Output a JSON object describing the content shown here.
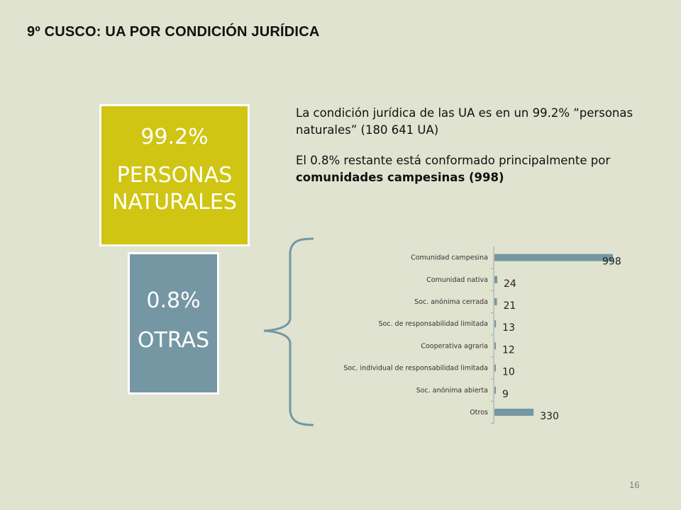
{
  "slide": {
    "title": "9º CUSCO:  UA POR CONDICIÓN JURÍDICA",
    "page_number": "16"
  },
  "boxes": {
    "main": {
      "percent": "99.2%",
      "label": "PERSONAS NATURALES",
      "color": "#cfc512"
    },
    "other": {
      "percent": "0.8%",
      "label": "OTRAS",
      "color": "#7497a3"
    }
  },
  "description": {
    "para1": "La condición jurídica de las UA es en un 99.2% “personas naturales” (180 641 UA)",
    "para2_prefix": "El 0.8% restante está conformado principalmente por ",
    "para2_bold": "comunidades campesinas (998)"
  },
  "chart_data": {
    "type": "bar",
    "orientation": "horizontal",
    "categories": [
      "Comunidad campesina",
      "Comunidad nativa",
      "Soc. anónima cerrada",
      "Soc. de responsabilidad limitada",
      "Cooperativa agraria",
      "Soc. individual de responsabilidad limitada",
      "Soc. anónima abierta",
      "Otros"
    ],
    "values": [
      998,
      24,
      21,
      13,
      12,
      10,
      9,
      330
    ],
    "bar_color": "#7497a3",
    "xlim": [
      0,
      998
    ],
    "grid": false
  }
}
